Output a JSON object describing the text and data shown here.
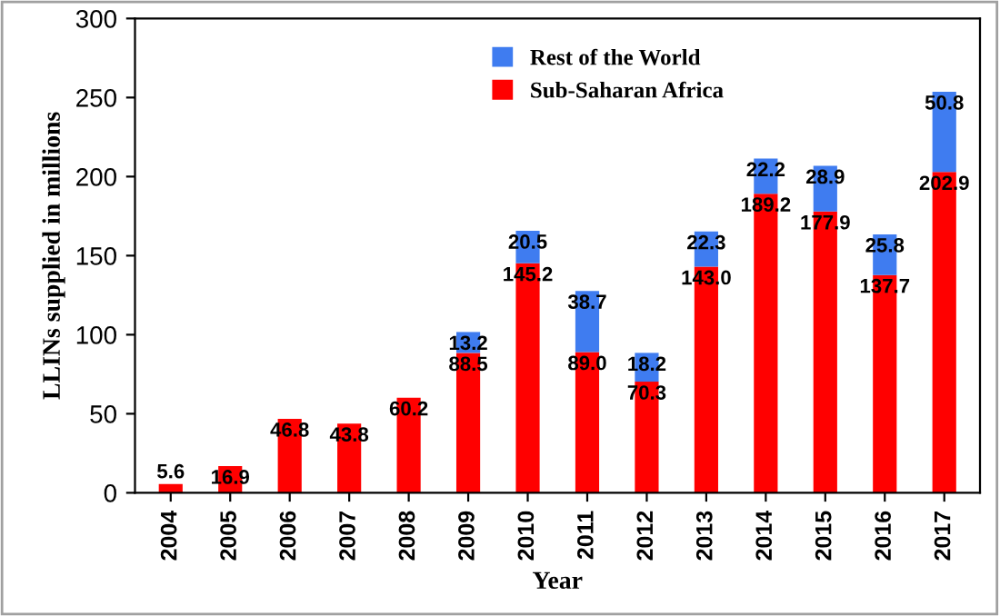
{
  "chart_data": {
    "type": "bar",
    "stacked": true,
    "xlabel": "Year",
    "ylabel": "LLINs supplied in millions",
    "categories": [
      "2004",
      "2005",
      "2006",
      "2007",
      "2008",
      "2009",
      "2010",
      "2011",
      "2012",
      "2013",
      "2014",
      "2015",
      "2016",
      "2017"
    ],
    "series": [
      {
        "name": "Sub-Saharan Africa",
        "color": "#ff0000",
        "values": [
          5.6,
          16.9,
          46.8,
          43.8,
          60.2,
          88.5,
          145.2,
          89.0,
          70.3,
          143.0,
          189.2,
          177.9,
          137.7,
          202.9
        ],
        "value_labels": [
          "5.6",
          "16.9",
          "46.8",
          "43.8",
          "60.2",
          "88.5",
          "145.2",
          "89.0",
          "70.3",
          "143.0",
          "189.2",
          "177.9",
          "137.7",
          "202.9"
        ]
      },
      {
        "name": "Rest of the World",
        "color": "#3f7cf0",
        "values": [
          null,
          null,
          null,
          null,
          null,
          13.2,
          20.5,
          38.7,
          18.2,
          22.3,
          22.2,
          28.9,
          25.8,
          50.8
        ],
        "value_labels": [
          null,
          null,
          null,
          null,
          null,
          "13.2",
          "20.5",
          "38.7",
          "18.2",
          "22.3",
          "22.2",
          "28.9",
          "25.8",
          "50.8"
        ]
      }
    ],
    "ylim": [
      0,
      300
    ],
    "yticks": [
      0,
      50,
      100,
      150,
      200,
      250,
      300
    ],
    "legend": "top",
    "grid": false
  }
}
